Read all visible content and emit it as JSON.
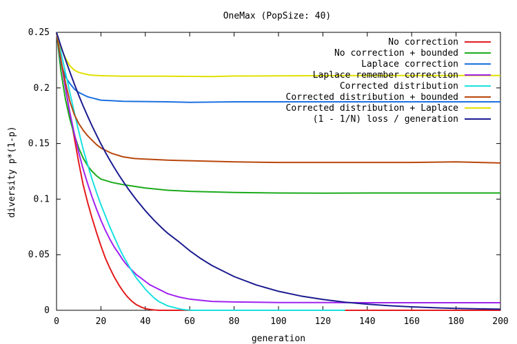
{
  "chart_data": {
    "type": "line",
    "title": "OneMax (PopSize: 40)",
    "xlabel": "generation",
    "ylabel": "diversity p*(1-p)",
    "xlim": [
      0,
      200
    ],
    "ylim": [
      0,
      0.25
    ],
    "xticks": [
      0,
      20,
      40,
      60,
      80,
      100,
      120,
      140,
      160,
      180,
      200
    ],
    "yticks": [
      0,
      0.05,
      0.1,
      0.15,
      0.2,
      0.25
    ],
    "ytick_labels": [
      "0",
      "0.05",
      "0.1",
      "0.15",
      "0.2",
      "0.25"
    ],
    "grid": false,
    "legend_position": "top-right",
    "series": [
      {
        "name": "No correction",
        "color": "#e41a1c",
        "points": [
          [
            0,
            0.25
          ],
          [
            2,
            0.225
          ],
          [
            4,
            0.2
          ],
          [
            6,
            0.177
          ],
          [
            8,
            0.155
          ],
          [
            10,
            0.133
          ],
          [
            12,
            0.113
          ],
          [
            14,
            0.097
          ],
          [
            16,
            0.083
          ],
          [
            18,
            0.07
          ],
          [
            20,
            0.058
          ],
          [
            22,
            0.047
          ],
          [
            24,
            0.038
          ],
          [
            26,
            0.03
          ],
          [
            28,
            0.023
          ],
          [
            30,
            0.017
          ],
          [
            32,
            0.012
          ],
          [
            34,
            0.008
          ],
          [
            36,
            0.005
          ],
          [
            38,
            0.003
          ],
          [
            40,
            0.0015
          ],
          [
            42,
            0.0008
          ],
          [
            44,
            0.0003
          ],
          [
            46,
            0.0
          ],
          [
            200,
            0.0
          ]
        ]
      },
      {
        "name": "No correction + bounded",
        "color": "#1aaa1a",
        "points": [
          [
            0,
            0.25
          ],
          [
            2,
            0.215
          ],
          [
            4,
            0.19
          ],
          [
            6,
            0.172
          ],
          [
            8,
            0.158
          ],
          [
            10,
            0.146
          ],
          [
            12,
            0.137
          ],
          [
            14,
            0.13
          ],
          [
            16,
            0.125
          ],
          [
            18,
            0.121
          ],
          [
            20,
            0.118
          ],
          [
            25,
            0.115
          ],
          [
            30,
            0.113
          ],
          [
            40,
            0.11
          ],
          [
            50,
            0.108
          ],
          [
            60,
            0.107
          ],
          [
            80,
            0.106
          ],
          [
            100,
            0.1055
          ],
          [
            120,
            0.1053
          ],
          [
            140,
            0.1055
          ],
          [
            160,
            0.1055
          ],
          [
            180,
            0.1055
          ],
          [
            200,
            0.1055
          ]
        ]
      },
      {
        "name": "Laplace correction",
        "color": "#1a70e0",
        "points": [
          [
            0,
            0.25
          ],
          [
            2,
            0.222
          ],
          [
            4,
            0.21
          ],
          [
            6,
            0.204
          ],
          [
            8,
            0.199
          ],
          [
            10,
            0.196
          ],
          [
            12,
            0.194
          ],
          [
            14,
            0.192
          ],
          [
            16,
            0.191
          ],
          [
            18,
            0.19
          ],
          [
            20,
            0.189
          ],
          [
            25,
            0.1885
          ],
          [
            30,
            0.188
          ],
          [
            50,
            0.1875
          ],
          [
            60,
            0.187
          ],
          [
            80,
            0.1875
          ],
          [
            100,
            0.1875
          ],
          [
            120,
            0.1875
          ],
          [
            140,
            0.1875
          ],
          [
            160,
            0.1875
          ],
          [
            180,
            0.1875
          ],
          [
            200,
            0.1875
          ]
        ]
      },
      {
        "name": "Laplace remember correction",
        "color": "#a020f0",
        "points": [
          [
            0,
            0.25
          ],
          [
            2,
            0.225
          ],
          [
            4,
            0.2
          ],
          [
            6,
            0.178
          ],
          [
            8,
            0.159
          ],
          [
            10,
            0.142
          ],
          [
            12,
            0.127
          ],
          [
            14,
            0.114
          ],
          [
            16,
            0.102
          ],
          [
            18,
            0.091
          ],
          [
            20,
            0.081
          ],
          [
            22,
            0.072
          ],
          [
            24,
            0.064
          ],
          [
            26,
            0.057
          ],
          [
            28,
            0.051
          ],
          [
            30,
            0.045
          ],
          [
            32,
            0.04
          ],
          [
            34,
            0.036
          ],
          [
            36,
            0.032
          ],
          [
            38,
            0.029
          ],
          [
            40,
            0.026
          ],
          [
            42,
            0.023
          ],
          [
            44,
            0.021
          ],
          [
            46,
            0.019
          ],
          [
            48,
            0.017
          ],
          [
            50,
            0.015
          ],
          [
            55,
            0.012
          ],
          [
            60,
            0.01
          ],
          [
            65,
            0.009
          ],
          [
            70,
            0.008
          ],
          [
            80,
            0.0075
          ],
          [
            100,
            0.007
          ],
          [
            120,
            0.007
          ],
          [
            140,
            0.0068
          ],
          [
            160,
            0.0068
          ],
          [
            180,
            0.0068
          ],
          [
            200,
            0.0068
          ]
        ]
      },
      {
        "name": "Corrected distribution",
        "color": "#19e0e0",
        "points": [
          [
            0,
            0.25
          ],
          [
            2,
            0.232
          ],
          [
            4,
            0.214
          ],
          [
            6,
            0.196
          ],
          [
            8,
            0.178
          ],
          [
            10,
            0.161
          ],
          [
            12,
            0.145
          ],
          [
            14,
            0.131
          ],
          [
            16,
            0.118
          ],
          [
            18,
            0.106
          ],
          [
            20,
            0.095
          ],
          [
            22,
            0.085
          ],
          [
            24,
            0.075
          ],
          [
            26,
            0.066
          ],
          [
            28,
            0.057
          ],
          [
            30,
            0.049
          ],
          [
            32,
            0.042
          ],
          [
            34,
            0.035
          ],
          [
            36,
            0.029
          ],
          [
            38,
            0.024
          ],
          [
            40,
            0.019
          ],
          [
            42,
            0.015
          ],
          [
            44,
            0.011
          ],
          [
            46,
            0.008
          ],
          [
            48,
            0.006
          ],
          [
            50,
            0.004
          ],
          [
            52,
            0.003
          ],
          [
            54,
            0.002
          ],
          [
            56,
            0.001
          ],
          [
            58,
            0.0005
          ],
          [
            60,
            0.0002
          ],
          [
            62,
            0.0
          ],
          [
            130,
            0.0
          ]
        ]
      },
      {
        "name": "Corrected distribution + bounded",
        "color": "#b8460b",
        "points": [
          [
            0,
            0.25
          ],
          [
            2,
            0.225
          ],
          [
            4,
            0.205
          ],
          [
            6,
            0.188
          ],
          [
            8,
            0.176
          ],
          [
            10,
            0.168
          ],
          [
            12,
            0.162
          ],
          [
            14,
            0.157
          ],
          [
            16,
            0.153
          ],
          [
            18,
            0.149
          ],
          [
            20,
            0.146
          ],
          [
            25,
            0.141
          ],
          [
            30,
            0.138
          ],
          [
            35,
            0.1365
          ],
          [
            40,
            0.136
          ],
          [
            50,
            0.135
          ],
          [
            60,
            0.1345
          ],
          [
            80,
            0.1335
          ],
          [
            100,
            0.133
          ],
          [
            120,
            0.133
          ],
          [
            140,
            0.133
          ],
          [
            160,
            0.133
          ],
          [
            180,
            0.1335
          ],
          [
            200,
            0.1325
          ]
        ]
      },
      {
        "name": "Corrected distribution + Laplace",
        "color": "#e0e000",
        "points": [
          [
            0,
            0.25
          ],
          [
            2,
            0.236
          ],
          [
            4,
            0.227
          ],
          [
            6,
            0.22
          ],
          [
            8,
            0.216
          ],
          [
            10,
            0.214
          ],
          [
            12,
            0.213
          ],
          [
            14,
            0.212
          ],
          [
            16,
            0.2115
          ],
          [
            20,
            0.211
          ],
          [
            30,
            0.2105
          ],
          [
            50,
            0.2105
          ],
          [
            70,
            0.2103
          ],
          [
            80,
            0.2107
          ],
          [
            100,
            0.2108
          ],
          [
            120,
            0.211
          ],
          [
            140,
            0.2112
          ],
          [
            160,
            0.2112
          ],
          [
            180,
            0.2112
          ],
          [
            200,
            0.2112
          ]
        ]
      },
      {
        "name": "(1 - 1/N) loss / generation",
        "color": "#1a1a90",
        "points": [
          [
            0,
            0.25
          ],
          [
            2,
            0.2375
          ],
          [
            4,
            0.2256
          ],
          [
            6,
            0.2144
          ],
          [
            8,
            0.2036
          ],
          [
            10,
            0.1934
          ],
          [
            12,
            0.1838
          ],
          [
            14,
            0.1746
          ],
          [
            16,
            0.1659
          ],
          [
            18,
            0.1576
          ],
          [
            20,
            0.1497
          ],
          [
            22,
            0.1422
          ],
          [
            24,
            0.1351
          ],
          [
            26,
            0.1284
          ],
          [
            28,
            0.1219
          ],
          [
            30,
            0.1159
          ],
          [
            32,
            0.1101
          ],
          [
            34,
            0.1046
          ],
          [
            36,
            0.0993
          ],
          [
            38,
            0.0944
          ],
          [
            40,
            0.0896
          ],
          [
            42,
            0.0852
          ],
          [
            44,
            0.0809
          ],
          [
            46,
            0.0769
          ],
          [
            48,
            0.073
          ],
          [
            50,
            0.0694
          ],
          [
            55,
            0.0618
          ],
          [
            60,
            0.0536
          ],
          [
            65,
            0.0465
          ],
          [
            70,
            0.0403
          ],
          [
            80,
            0.0303
          ],
          [
            90,
            0.0228
          ],
          [
            100,
            0.0171
          ],
          [
            110,
            0.0129
          ],
          [
            120,
            0.0097
          ],
          [
            130,
            0.0073
          ],
          [
            140,
            0.0055
          ],
          [
            150,
            0.0041
          ],
          [
            160,
            0.0031
          ],
          [
            170,
            0.0023
          ],
          [
            180,
            0.0017
          ],
          [
            190,
            0.0013
          ],
          [
            200,
            0.001
          ]
        ]
      }
    ]
  }
}
